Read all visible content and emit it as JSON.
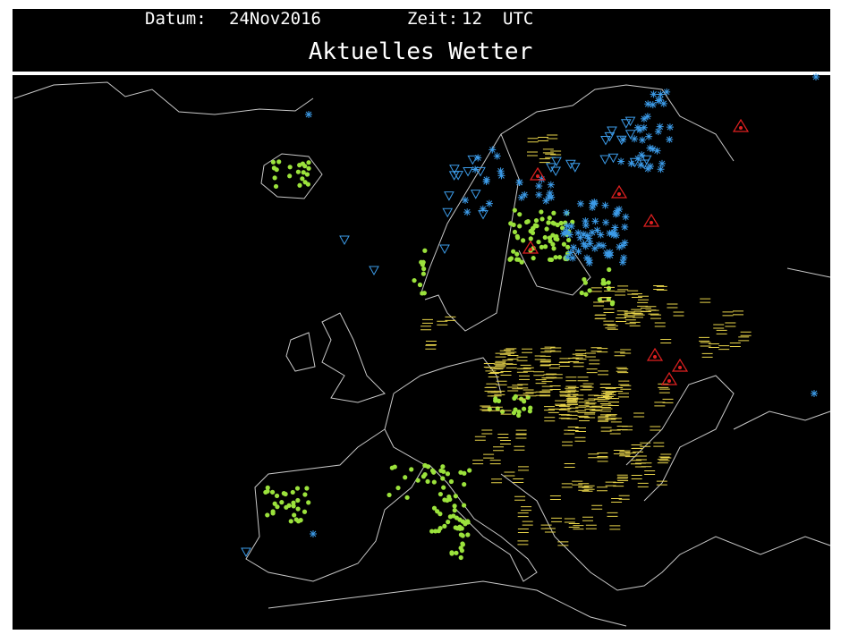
{
  "header": {
    "date_label": "Datum:",
    "date": "24Nov2016",
    "time_label": "Zeit:",
    "time": "12",
    "time_zone": "UTC",
    "title": "Aktuelles Wetter"
  }
}
